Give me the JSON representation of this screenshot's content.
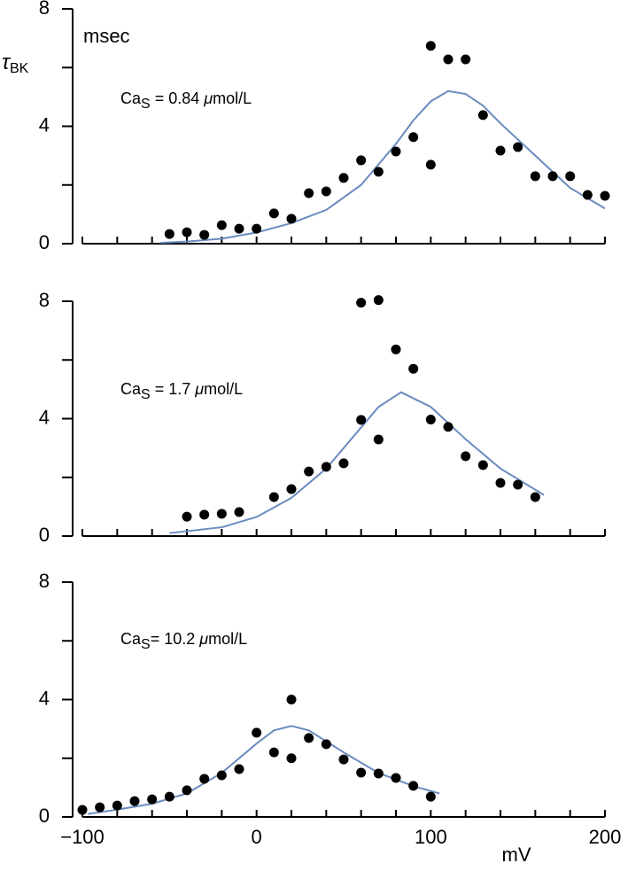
{
  "chart_data": [
    {
      "type": "scatter",
      "y_label": "τ",
      "y_label_sub": "BK",
      "y_unit": "msec",
      "annotation": {
        "main": "Ca",
        "sub": "S",
        "text": " = 0.84 ",
        "italic": "μ",
        "unit": "mol/L"
      },
      "xlim": [
        -100,
        200
      ],
      "ylim": [
        0,
        8
      ],
      "yticks": [
        0,
        4,
        8
      ],
      "yticks_minor": [
        2,
        6
      ],
      "xtick_marks": [
        -100,
        -80,
        -60,
        -40,
        -20,
        0,
        20,
        40,
        60,
        80,
        100,
        120,
        140,
        160,
        180,
        200
      ],
      "points": {
        "color": "#000000",
        "x": [
          -50,
          -40,
          -30,
          -20,
          -10,
          0,
          10,
          20,
          30,
          40,
          50,
          60,
          70,
          80,
          90,
          100,
          100,
          110,
          120,
          130,
          140,
          150,
          160,
          170,
          180,
          190,
          200
        ],
        "y": [
          0.33,
          0.39,
          0.3,
          0.63,
          0.51,
          0.51,
          1.03,
          0.85,
          1.72,
          1.78,
          2.24,
          2.84,
          2.45,
          3.14,
          3.63,
          6.74,
          2.69,
          6.28,
          6.28,
          4.38,
          3.17,
          3.29,
          2.3,
          2.3,
          2.3,
          1.66,
          1.63
        ]
      },
      "fit": {
        "color": "#6a8bbf",
        "x": [
          -55,
          -40,
          -20,
          0,
          20,
          40,
          60,
          80,
          90,
          100,
          110,
          120,
          130,
          140,
          160,
          180,
          200
        ],
        "y": [
          0.03,
          0.07,
          0.17,
          0.38,
          0.7,
          1.15,
          2.0,
          3.4,
          4.2,
          4.85,
          5.2,
          5.1,
          4.7,
          4.1,
          3.0,
          1.9,
          1.2
        ]
      }
    },
    {
      "type": "scatter",
      "annotation": {
        "main": "Ca",
        "sub": "S",
        "text": " = 1.7 ",
        "italic": "μ",
        "unit": "mol/L"
      },
      "xlim": [
        -100,
        200
      ],
      "ylim": [
        0,
        8
      ],
      "yticks": [
        0,
        4,
        8
      ],
      "yticks_minor": [
        2,
        6
      ],
      "xtick_marks": [
        -100,
        -80,
        -60,
        -40,
        -20,
        0,
        20,
        40,
        60,
        80,
        100,
        120,
        140,
        160,
        180,
        200
      ],
      "points": {
        "color": "#000000",
        "x": [
          -40,
          -30,
          -20,
          -10,
          10,
          20,
          30,
          40,
          50,
          60,
          60,
          70,
          70,
          80,
          90,
          100,
          110,
          120,
          130,
          140,
          150,
          160
        ],
        "y": [
          0.66,
          0.73,
          0.76,
          0.82,
          1.33,
          1.6,
          2.2,
          2.36,
          2.48,
          3.96,
          7.95,
          8.04,
          3.29,
          6.36,
          5.7,
          3.97,
          3.72,
          2.72,
          2.42,
          1.81,
          1.75,
          1.33
        ]
      },
      "fit": {
        "color": "#6a8bbf",
        "x": [
          -50,
          -20,
          0,
          20,
          40,
          60,
          70,
          83,
          100,
          120,
          140,
          165
        ],
        "y": [
          0.1,
          0.3,
          0.65,
          1.3,
          2.3,
          3.7,
          4.4,
          4.9,
          4.4,
          3.3,
          2.3,
          1.4
        ]
      }
    },
    {
      "type": "scatter",
      "x_label": "mV",
      "annotation": {
        "main": "Ca",
        "sub": "S",
        "text": "= 10.2 ",
        "italic": "μ",
        "unit": "mol/L"
      },
      "xlim": [
        -100,
        200
      ],
      "ylim": [
        0,
        8
      ],
      "yticks": [
        0,
        4,
        8
      ],
      "yticks_minor": [
        2,
        6
      ],
      "xtick_marks": [
        -100,
        -80,
        -60,
        -40,
        -20,
        0,
        20,
        40,
        60,
        80,
        100,
        120,
        140,
        160,
        180,
        200
      ],
      "xticks": [
        {
          "value": -100,
          "label": "−100"
        },
        0,
        100,
        200
      ],
      "points": {
        "color": "#000000",
        "x": [
          -100,
          -90,
          -80,
          -70,
          -60,
          -50,
          -40,
          -30,
          -20,
          -10,
          0,
          10,
          20,
          20,
          30,
          40,
          50,
          60,
          70,
          80,
          90,
          100
        ],
        "y": [
          0.24,
          0.33,
          0.39,
          0.54,
          0.6,
          0.69,
          0.91,
          1.3,
          1.42,
          1.63,
          2.87,
          2.2,
          4.0,
          2.0,
          2.69,
          2.48,
          1.96,
          1.51,
          1.48,
          1.33,
          1.06,
          0.69
        ]
      },
      "fit": {
        "color": "#6a8bbf",
        "x": [
          -97,
          -80,
          -60,
          -40,
          -20,
          0,
          10,
          20,
          30,
          50,
          70,
          90,
          105
        ],
        "y": [
          0.1,
          0.25,
          0.45,
          0.8,
          1.5,
          2.5,
          2.95,
          3.1,
          2.95,
          2.2,
          1.5,
          1.05,
          0.8
        ]
      }
    }
  ]
}
